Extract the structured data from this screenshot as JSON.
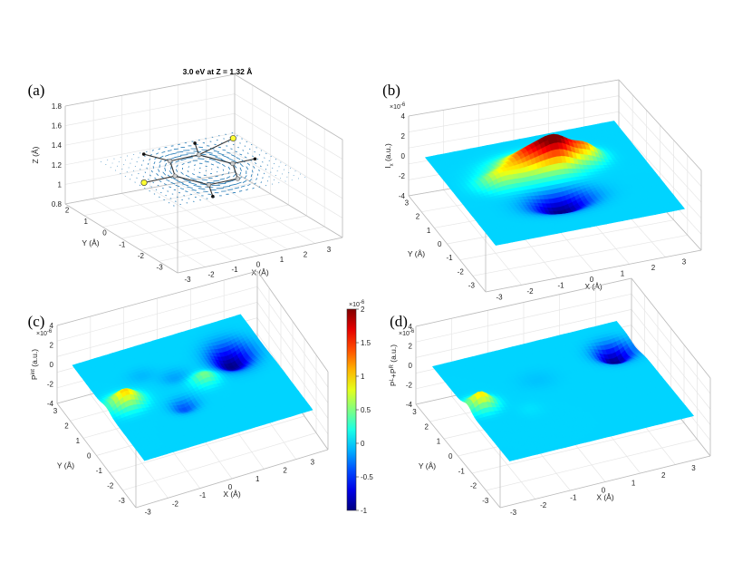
{
  "chart_data": [
    {
      "panel": "(a)",
      "type": "surface",
      "title": "3.0 eV at Z = 1.32 Å",
      "xlabel": "X (Å)",
      "ylabel": "Y (Å)",
      "zlabel": "Z (Å)",
      "xticks": [
        "-3",
        "-2",
        "-1",
        "0",
        "1",
        "2",
        "3"
      ],
      "yticks": [
        "-3",
        "-2",
        "-1",
        "0",
        "1",
        "2"
      ],
      "zticks": [
        "0.8",
        "1",
        "1.2",
        "1.4",
        "1.6",
        "1.8"
      ],
      "xlim": [
        -3.5,
        3.5
      ],
      "ylim": [
        -3,
        3
      ],
      "zlim": [
        0.8,
        1.8
      ],
      "quiver_plane_z": 1.32,
      "atoms": [
        {
          "element": "C",
          "x": 1.4,
          "y": 0.0
        },
        {
          "element": "C",
          "x": 0.7,
          "y": 1.21
        },
        {
          "element": "C",
          "x": -0.7,
          "y": 1.21
        },
        {
          "element": "C",
          "x": -1.4,
          "y": 0.0
        },
        {
          "element": "C",
          "x": -0.7,
          "y": -1.21
        },
        {
          "element": "C",
          "x": 0.7,
          "y": -1.21
        },
        {
          "element": "H",
          "x": 2.48,
          "y": 0.0
        },
        {
          "element": "H",
          "x": 1.24,
          "y": 2.15
        },
        {
          "element": "H",
          "x": -1.24,
          "y": 2.15
        },
        {
          "element": "H",
          "x": -1.24,
          "y": -2.15
        },
        {
          "element": "S",
          "x": -2.9,
          "y": 0.0
        },
        {
          "element": "S",
          "x": 2.9,
          "y": 1.9
        }
      ],
      "bonds": [
        [
          0,
          1
        ],
        [
          1,
          2
        ],
        [
          2,
          3
        ],
        [
          3,
          4
        ],
        [
          4,
          5
        ],
        [
          5,
          0
        ],
        [
          0,
          6
        ],
        [
          1,
          7
        ],
        [
          2,
          8
        ],
        [
          4,
          9
        ],
        [
          3,
          10
        ],
        [
          1,
          11
        ]
      ]
    },
    {
      "panel": "(b)",
      "type": "surface",
      "zlabel": "I_x (a.u.)",
      "zexponent": "×10^-6",
      "xlabel": "X (Å)",
      "ylabel": "Y (Å)",
      "xticks": [
        "-3",
        "-2",
        "-1",
        "0",
        "1",
        "2",
        "3"
      ],
      "yticks": [
        "-3",
        "-2",
        "-1",
        "0",
        "1",
        "2",
        "3"
      ],
      "zticks": [
        "-4",
        "-2",
        "0",
        "2",
        "4"
      ],
      "zlim": [
        -4,
        4
      ],
      "blobs": [
        {
          "x": -0.3,
          "y": 1.1,
          "amp": 1.6,
          "sx": 0.9,
          "sy": 0.55
        },
        {
          "x": 0.6,
          "y": 1.1,
          "amp": 1.1,
          "sx": 0.5,
          "sy": 0.45
        },
        {
          "x": 1.6,
          "y": 1.1,
          "amp": 0.9,
          "sx": 0.4,
          "sy": 0.35
        },
        {
          "x": -1.8,
          "y": 0.6,
          "amp": 0.6,
          "sx": 0.5,
          "sy": 0.35
        },
        {
          "x": -0.2,
          "y": -1.1,
          "amp": -1.0,
          "sx": 0.75,
          "sy": 0.45
        },
        {
          "x": -1.7,
          "y": 1.2,
          "amp": -0.08,
          "sx": 0.4,
          "sy": 0.3
        }
      ]
    },
    {
      "panel": "(c)",
      "type": "surface",
      "zlabel": "P^int (a.u.)",
      "zexponent": "×10^-6",
      "xlabel": "X (Å)",
      "ylabel": "Y (Å)",
      "xticks": [
        "-3",
        "-2",
        "-1",
        "0",
        "1",
        "2",
        "3"
      ],
      "yticks": [
        "-3",
        "-2",
        "-1",
        "0",
        "1",
        "2",
        "3"
      ],
      "zticks": [
        "-4",
        "-2",
        "0",
        "2",
        "4"
      ],
      "zlim": [
        -4,
        4
      ],
      "blobs": [
        {
          "x": -2.7,
          "y": 0.2,
          "amp": 1.05,
          "sx": 0.45,
          "sy": 0.35
        },
        {
          "x": 0.6,
          "y": 0.2,
          "amp": 0.5,
          "sx": 0.35,
          "sy": 0.3
        },
        {
          "x": -0.7,
          "y": -0.8,
          "amp": -0.4,
          "sx": 0.35,
          "sy": 0.3
        },
        {
          "x": 2.2,
          "y": 1.2,
          "amp": -1.0,
          "sx": 0.55,
          "sy": 0.55
        },
        {
          "x": -0.3,
          "y": 0.9,
          "amp": -0.15,
          "sx": 0.4,
          "sy": 0.3
        },
        {
          "x": -1.4,
          "y": 1.5,
          "amp": -0.08,
          "sx": 0.4,
          "sy": 0.3
        }
      ]
    },
    {
      "panel": "(d)",
      "type": "surface",
      "zlabel": "P^L+P^R (a.u.)",
      "zexponent": "×10^-6",
      "xlabel": "X (Å)",
      "ylabel": "Y (Å)",
      "xticks": [
        "-3",
        "-2",
        "-1",
        "0",
        "1",
        "2",
        "3"
      ],
      "yticks": [
        "-3",
        "-2",
        "-1",
        "0",
        "1",
        "2",
        "3"
      ],
      "zticks": [
        "-4",
        "-2",
        "0",
        "2",
        "4"
      ],
      "zlim": [
        -4,
        4
      ],
      "blobs": [
        {
          "x": -3.0,
          "y": 0.3,
          "amp": 1.0,
          "sx": 0.35,
          "sy": 0.3
        },
        {
          "x": 2.7,
          "y": 1.6,
          "amp": -1.0,
          "sx": 0.45,
          "sy": 0.4
        },
        {
          "x": -1.5,
          "y": -0.6,
          "amp": 0.04,
          "sx": 0.3,
          "sy": 0.3
        },
        {
          "x": -0.5,
          "y": 1.0,
          "amp": -0.05,
          "sx": 0.5,
          "sy": 0.4
        }
      ]
    }
  ],
  "colorbar": {
    "exponent": "×10^-6",
    "ticks": [
      "2",
      "1.5",
      "1",
      "0.5",
      "0",
      "-0.5",
      "-1"
    ],
    "range": [
      -1,
      2
    ],
    "colormap": "jet"
  },
  "colors": {
    "axis": "#bbbbbb",
    "grid": "#e6e6e6",
    "bond": "#333333",
    "atom_S": "#ffff33",
    "arrow": "#1f77b4"
  }
}
